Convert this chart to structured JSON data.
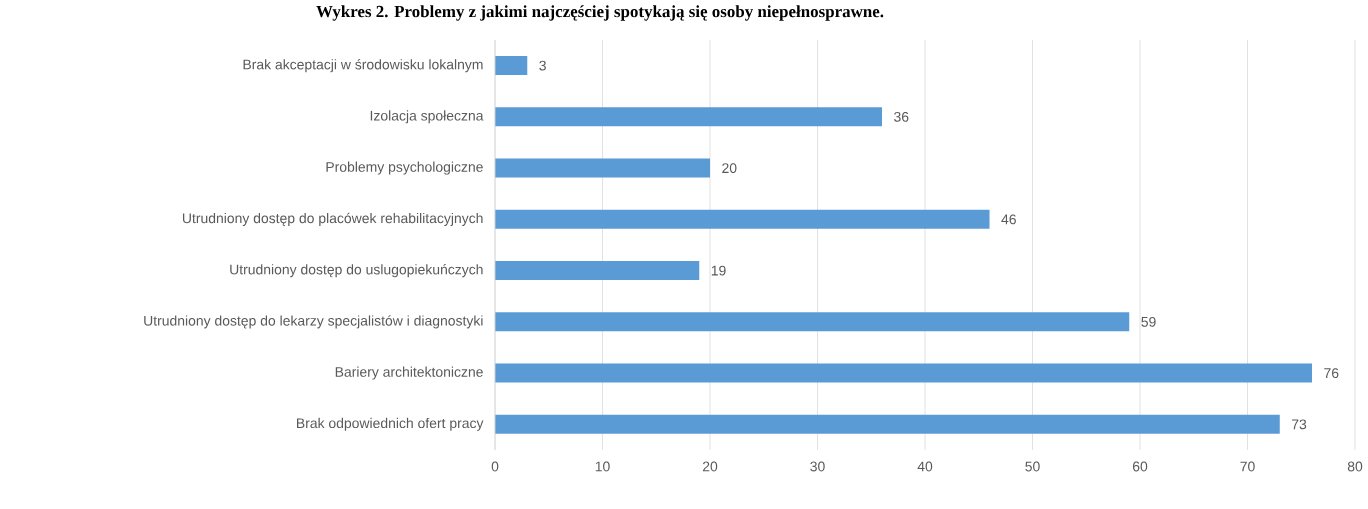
{
  "chart_data": {
    "type": "bar",
    "orientation": "horizontal",
    "title": "Wykres 2. Problemy z jakimi najczęściej spotykają się osoby niepełnosprawne.",
    "categories": [
      "Brak akceptacji w środowisku lokalnym",
      "Izolacja społeczna",
      "Problemy psychologiczne",
      "Utrudniony dostęp do placówek rehabilitacyjnych",
      "Utrudniony dostęp do uslugopiekuńczych",
      "Utrudniony dostęp do lekarzy specjalistów i diagnostyki",
      "Bariery architektoniczne",
      "Brak odpowiednich ofert pracy"
    ],
    "values": [
      3,
      36,
      20,
      46,
      19,
      59,
      76,
      73
    ],
    "color": "#5b9bd5",
    "xlim": [
      0,
      80
    ],
    "xticks": [
      0,
      10,
      20,
      30,
      40,
      50,
      60,
      70,
      80
    ],
    "grid": "x",
    "data_labels": true
  }
}
